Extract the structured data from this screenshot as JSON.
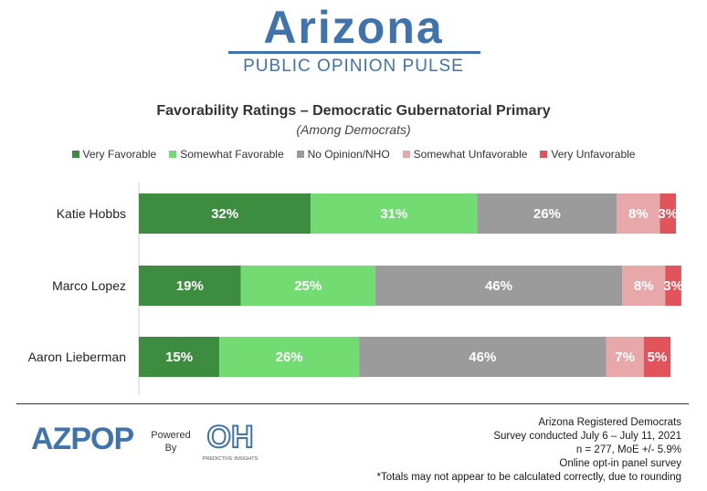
{
  "brand": {
    "title": "Arizona",
    "subtitle": "PUBLIC OPINION PULSE"
  },
  "chart_data": {
    "type": "bar",
    "orientation": "horizontal",
    "stacked": true,
    "title": "Favorability Ratings  – Democratic Gubernatorial Primary",
    "subtitle": "(Among Democrats)",
    "categories": [
      "Katie Hobbs",
      "Marco Lopez",
      "Aaron Lieberman"
    ],
    "series": [
      {
        "name": "Very Favorable",
        "color": "#3e8c3f",
        "values": [
          32,
          19,
          15
        ]
      },
      {
        "name": "Somewhat Favorable",
        "color": "#72db72",
        "values": [
          31,
          25,
          26
        ]
      },
      {
        "name": "No Opinion/NHO",
        "color": "#9b9b9b",
        "values": [
          26,
          46,
          46
        ]
      },
      {
        "name": "Somewhat Unfavorable",
        "color": "#e8a7a9",
        "values": [
          8,
          8,
          7
        ]
      },
      {
        "name": "Very Unfavorable",
        "color": "#e2545c",
        "values": [
          3,
          3,
          5
        ]
      }
    ],
    "data_label_suffix": "%",
    "legend": "top",
    "grid": false
  },
  "footer": {
    "logo_text": "AZPOP",
    "powered_line1": "Powered",
    "powered_line2": "By",
    "partner_initials": "OH",
    "partner_name": "PREDICTIVE INSIGHTS",
    "notes": [
      "Arizona Registered Democrats",
      "Survey conducted July 6 – July 11, 2021",
      "n = 277, MoE +/- 5.9%",
      "Online opt-in panel survey",
      "*Totals may not appear to be calculated correctly, due to rounding"
    ]
  }
}
